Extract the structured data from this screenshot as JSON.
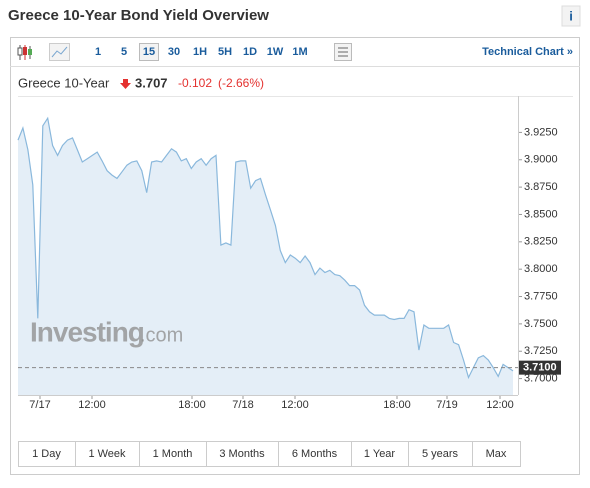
{
  "header": {
    "title": "Greece 10-Year Bond Yield Overview",
    "info": "i"
  },
  "toolbar": {
    "intervals": [
      "1",
      "5",
      "15",
      "30",
      "1H",
      "5H",
      "1D",
      "1W",
      "1M"
    ],
    "selected": "15",
    "technical": "Technical Chart »"
  },
  "quote": {
    "name": "Greece 10-Year",
    "price": "3.707",
    "change": "-0.102",
    "change_pct": "(-2.66%)"
  },
  "watermark": {
    "brand": "Investing",
    "suffix": ".com"
  },
  "ranges": [
    "1 Day",
    "1 Week",
    "1 Month",
    "3 Months",
    "6 Months",
    "1 Year",
    "5 years",
    "Max"
  ],
  "chart_data": {
    "type": "area",
    "series": [
      {
        "name": "Greece 10-Year",
        "color": "#8ab8dc",
        "fill": "#e4eef7",
        "values": [
          3.918,
          3.929,
          3.909,
          3.877,
          3.755,
          3.931,
          3.938,
          3.913,
          3.904,
          3.913,
          3.918,
          3.92,
          3.909,
          3.898,
          3.901,
          3.904,
          3.907,
          3.899,
          3.89,
          3.886,
          3.883,
          3.889,
          3.895,
          3.898,
          3.899,
          3.89,
          3.87,
          3.898,
          3.899,
          3.898,
          3.904,
          3.91,
          3.907,
          3.899,
          3.901,
          3.892,
          3.898,
          3.901,
          3.895,
          3.901,
          3.904,
          3.822,
          3.824,
          3.822,
          3.898,
          3.899,
          3.899,
          3.874,
          3.881,
          3.883,
          3.868,
          3.854,
          3.84,
          3.817,
          3.806,
          3.813,
          3.81,
          3.806,
          3.812,
          3.806,
          3.795,
          3.801,
          3.797,
          3.799,
          3.795,
          3.794,
          3.79,
          3.785,
          3.785,
          3.781,
          3.767,
          3.761,
          3.758,
          3.758,
          3.758,
          3.755,
          3.754,
          3.755,
          3.755,
          3.763,
          3.761,
          3.726,
          3.749,
          3.746,
          3.746,
          3.746,
          3.746,
          3.749,
          3.733,
          3.731,
          3.717,
          3.701,
          3.71,
          3.719,
          3.721,
          3.717,
          3.71,
          3.702,
          3.713,
          3.71,
          3.707
        ]
      }
    ],
    "xlim": [
      0,
      100
    ],
    "xticks": [
      {
        "value": 4.4,
        "label": "7/17"
      },
      {
        "value": 14.8,
        "label": "12:00"
      },
      {
        "value": 34.8,
        "label": "18:00"
      },
      {
        "value": 45,
        "label": "7/18"
      },
      {
        "value": 55.4,
        "label": "12:00"
      },
      {
        "value": 75.8,
        "label": "18:00"
      },
      {
        "value": 85.8,
        "label": "7/19"
      },
      {
        "value": 96.4,
        "label": "12:00"
      }
    ],
    "ylim": [
      3.685,
      3.94
    ],
    "yticks": [
      {
        "value": 3.7,
        "label": "3.7000"
      },
      {
        "value": 3.725,
        "label": "3.7250"
      },
      {
        "value": 3.75,
        "label": "3.7500"
      },
      {
        "value": 3.775,
        "label": "3.7750"
      },
      {
        "value": 3.8,
        "label": "3.8000"
      },
      {
        "value": 3.825,
        "label": "3.8250"
      },
      {
        "value": 3.85,
        "label": "3.8500"
      },
      {
        "value": 3.875,
        "label": "3.8750"
      },
      {
        "value": 3.9,
        "label": "3.9000"
      },
      {
        "value": 3.925,
        "label": "3.9250"
      }
    ],
    "current_line": {
      "value": 3.71,
      "label": "3.7100"
    }
  }
}
